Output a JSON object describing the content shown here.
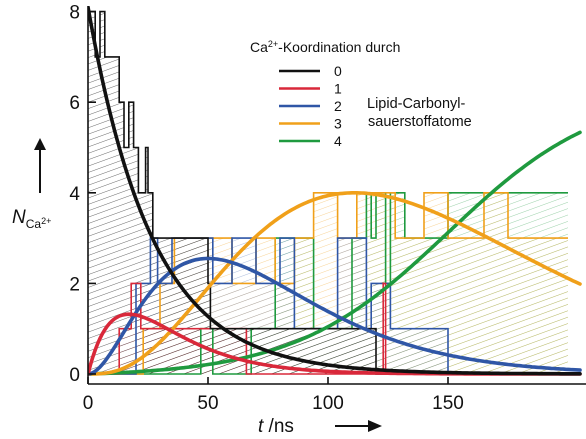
{
  "chart_data": {
    "type": "line",
    "x_axis": {
      "variable": "t",
      "unit": "ns",
      "slash": " /",
      "range": [
        0,
        200
      ],
      "ticks": [
        0,
        50,
        100,
        150
      ]
    },
    "y_axis": {
      "variable": "N",
      "subscript": "Ca",
      "superscript": "2+",
      "range": [
        0,
        8
      ],
      "ticks": [
        0,
        2,
        4,
        6,
        8
      ]
    },
    "legend": {
      "title_ca": "Ca",
      "title_sup": "2+",
      "title_rest": "-Koordination durch",
      "placement": "top-center"
    },
    "annotation": [
      "Lipid-Carbonyl-",
      "sauerstoffatome"
    ],
    "series": [
      {
        "name": "0",
        "color": "#111111",
        "fit": {
          "model": "exp_decay",
          "amplitude": 8.1,
          "tau": 27
        },
        "steps": [
          [
            0,
            8
          ],
          [
            3,
            8
          ],
          [
            3,
            7
          ],
          [
            5,
            7
          ],
          [
            5,
            8
          ],
          [
            7,
            8
          ],
          [
            7,
            7
          ],
          [
            13,
            7
          ],
          [
            13,
            6
          ],
          [
            15,
            6
          ],
          [
            15,
            5
          ],
          [
            17,
            5
          ],
          [
            17,
            6
          ],
          [
            19,
            6
          ],
          [
            19,
            5
          ],
          [
            21,
            5
          ],
          [
            21,
            4
          ],
          [
            24,
            4
          ],
          [
            24,
            5
          ],
          [
            25,
            5
          ],
          [
            25,
            4
          ],
          [
            27,
            4
          ],
          [
            27,
            3
          ],
          [
            50,
            3
          ],
          [
            50,
            2
          ],
          [
            51,
            2
          ],
          [
            51,
            1
          ],
          [
            120,
            1
          ],
          [
            120,
            0
          ],
          [
            200,
            0
          ]
        ]
      },
      {
        "name": "1",
        "color": "#d9283a",
        "fit": {
          "model": "gamma",
          "amplitude": 1.32,
          "shape": 2,
          "tau": 17
        },
        "steps": [
          [
            0,
            0
          ],
          [
            13,
            0
          ],
          [
            13,
            1
          ],
          [
            18,
            1
          ],
          [
            18,
            2
          ],
          [
            22,
            2
          ],
          [
            22,
            1
          ],
          [
            66,
            1
          ],
          [
            66,
            0
          ],
          [
            123,
            0
          ],
          [
            123,
            2
          ],
          [
            124,
            2
          ],
          [
            124,
            0
          ],
          [
            200,
            0
          ]
        ]
      },
      {
        "name": "2",
        "color": "#2f56a6",
        "fit": {
          "model": "gamma",
          "amplitude": 2.55,
          "shape": 3,
          "tau": 25
        },
        "steps": [
          [
            0,
            0
          ],
          [
            20,
            0
          ],
          [
            20,
            2
          ],
          [
            26,
            2
          ],
          [
            26,
            3
          ],
          [
            29,
            3
          ],
          [
            29,
            2
          ],
          [
            35,
            2
          ],
          [
            35,
            3
          ],
          [
            52,
            3
          ],
          [
            52,
            2
          ],
          [
            60,
            2
          ],
          [
            60,
            3
          ],
          [
            70,
            3
          ],
          [
            70,
            2
          ],
          [
            80,
            2
          ],
          [
            80,
            3
          ],
          [
            86,
            3
          ],
          [
            86,
            1
          ],
          [
            104,
            1
          ],
          [
            104,
            3
          ],
          [
            116,
            3
          ],
          [
            116,
            1
          ],
          [
            118,
            1
          ],
          [
            118,
            2
          ],
          [
            126,
            2
          ],
          [
            126,
            1
          ],
          [
            150,
            1
          ],
          [
            150,
            0
          ],
          [
            200,
            0
          ]
        ]
      },
      {
        "name": "3",
        "color": "#f0a01a",
        "fit": {
          "model": "gamma",
          "amplitude": 4.0,
          "shape": 4,
          "tau": 37
        },
        "steps": [
          [
            0,
            0
          ],
          [
            23,
            0
          ],
          [
            23,
            1
          ],
          [
            30,
            1
          ],
          [
            30,
            2
          ],
          [
            36,
            2
          ],
          [
            36,
            3
          ],
          [
            60,
            3
          ],
          [
            60,
            2
          ],
          [
            70,
            2
          ],
          [
            70,
            3
          ],
          [
            78,
            3
          ],
          [
            78,
            2
          ],
          [
            86,
            2
          ],
          [
            86,
            3
          ],
          [
            94,
            3
          ],
          [
            94,
            4
          ],
          [
            104,
            4
          ],
          [
            104,
            3
          ],
          [
            112,
            3
          ],
          [
            112,
            4
          ],
          [
            128,
            4
          ],
          [
            128,
            3
          ],
          [
            140,
            3
          ],
          [
            140,
            4
          ],
          [
            150,
            4
          ],
          [
            150,
            3
          ],
          [
            165,
            3
          ],
          [
            165,
            4
          ],
          [
            175,
            4
          ],
          [
            175,
            3
          ],
          [
            200,
            3
          ]
        ]
      },
      {
        "name": "4",
        "color": "#1f9a3f",
        "fit": {
          "model": "logistic",
          "plateau": 6.3,
          "midpoint": 150,
          "width": 32
        },
        "steps": [
          [
            0,
            0
          ],
          [
            47,
            0
          ],
          [
            47,
            1
          ],
          [
            52,
            1
          ],
          [
            52,
            0
          ],
          [
            68,
            0
          ],
          [
            68,
            1
          ],
          [
            78,
            1
          ],
          [
            78,
            3
          ],
          [
            94,
            3
          ],
          [
            94,
            1
          ],
          [
            110,
            1
          ],
          [
            110,
            3
          ],
          [
            116,
            3
          ],
          [
            116,
            4
          ],
          [
            118,
            4
          ],
          [
            118,
            3
          ],
          [
            120,
            3
          ],
          [
            120,
            4
          ],
          [
            124,
            4
          ],
          [
            124,
            2
          ],
          [
            126,
            2
          ],
          [
            126,
            4
          ],
          [
            132,
            4
          ],
          [
            132,
            3
          ],
          [
            150,
            3
          ],
          [
            150,
            4
          ],
          [
            200,
            4
          ]
        ]
      }
    ]
  }
}
